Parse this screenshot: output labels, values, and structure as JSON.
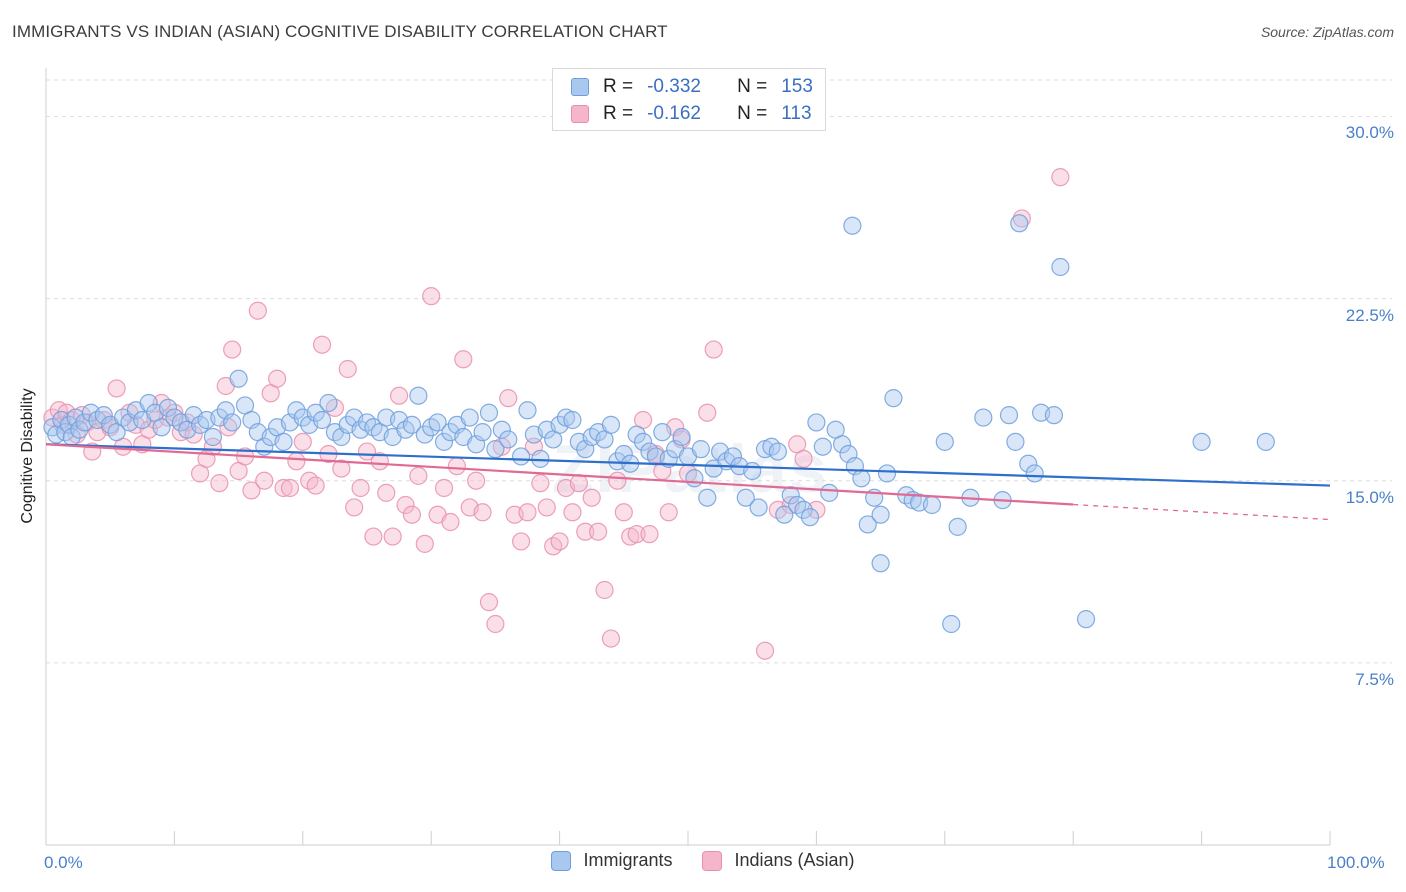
{
  "header": {
    "title": "IMMIGRANTS VS INDIAN (ASIAN) COGNITIVE DISABILITY CORRELATION CHART",
    "source": "Source: ZipAtlas.com"
  },
  "watermark": "ZIPatlas",
  "stats": [
    {
      "r_label": "R =",
      "r_value": "-0.332",
      "n_label": "N =",
      "n_value": "153"
    },
    {
      "r_label": "R =",
      "r_value": "-0.162",
      "n_label": "N =",
      "n_value": "113"
    }
  ],
  "colors": {
    "blue_fill": "#a9c8ef",
    "blue_stroke": "#6e9fdc",
    "blue_line": "#2e6fcb",
    "pink_fill": "#f5b6cb",
    "pink_stroke": "#e98fae",
    "pink_line": "#e06a93",
    "grid": "#dcdcdc",
    "tick_text": "#4a7fc8"
  },
  "chart_data": {
    "type": "scatter",
    "title": "IMMIGRANTS VS INDIAN (ASIAN) COGNITIVE DISABILITY CORRELATION CHART",
    "xlabel": "",
    "ylabel": "Cognitive Disability",
    "xlim": [
      0,
      100
    ],
    "ylim": [
      0,
      31.5
    ],
    "x_tick_labels": [
      "0.0%",
      "100.0%"
    ],
    "y_ticks": [
      7.5,
      15.0,
      22.5,
      30.0
    ],
    "y_tick_labels": [
      "7.5%",
      "15.0%",
      "22.5%",
      "30.0%"
    ],
    "grid": true,
    "legend_position": "bottom",
    "series": [
      {
        "name": "Immigrants",
        "r": -0.332,
        "n": 153,
        "trend": {
          "x": [
            0,
            100
          ],
          "y": [
            16.5,
            14.8
          ],
          "dashed_from": null
        },
        "points": [
          [
            0.5,
            17.2
          ],
          [
            0.8,
            16.9
          ],
          [
            1.2,
            17.5
          ],
          [
            1.5,
            17.0
          ],
          [
            1.8,
            17.3
          ],
          [
            2.0,
            16.8
          ],
          [
            2.3,
            17.6
          ],
          [
            2.6,
            17.1
          ],
          [
            3.0,
            17.4
          ],
          [
            3.5,
            17.8
          ],
          [
            4.0,
            17.5
          ],
          [
            4.5,
            17.7
          ],
          [
            5.0,
            17.3
          ],
          [
            5.5,
            17.0
          ],
          [
            6.0,
            17.6
          ],
          [
            6.5,
            17.4
          ],
          [
            7.0,
            17.9
          ],
          [
            7.5,
            17.5
          ],
          [
            8.0,
            18.2
          ],
          [
            8.5,
            17.8
          ],
          [
            9.0,
            17.2
          ],
          [
            9.5,
            18.0
          ],
          [
            10.0,
            17.6
          ],
          [
            10.5,
            17.4
          ],
          [
            11.0,
            17.1
          ],
          [
            11.5,
            17.7
          ],
          [
            12.0,
            17.3
          ],
          [
            12.5,
            17.5
          ],
          [
            13.0,
            16.8
          ],
          [
            13.5,
            17.6
          ],
          [
            14.0,
            17.9
          ],
          [
            14.5,
            17.4
          ],
          [
            15.0,
            19.2
          ],
          [
            15.5,
            18.1
          ],
          [
            16.0,
            17.5
          ],
          [
            16.5,
            17.0
          ],
          [
            17.0,
            16.4
          ],
          [
            17.5,
            16.8
          ],
          [
            18.0,
            17.2
          ],
          [
            18.5,
            16.6
          ],
          [
            19.0,
            17.4
          ],
          [
            19.5,
            17.9
          ],
          [
            20.0,
            17.6
          ],
          [
            20.5,
            17.3
          ],
          [
            21.0,
            17.8
          ],
          [
            21.5,
            17.5
          ],
          [
            22.0,
            18.2
          ],
          [
            22.5,
            17.0
          ],
          [
            23.0,
            16.8
          ],
          [
            23.5,
            17.3
          ],
          [
            24.0,
            17.6
          ],
          [
            24.5,
            17.1
          ],
          [
            25.0,
            17.4
          ],
          [
            25.5,
            17.2
          ],
          [
            26.0,
            17.0
          ],
          [
            26.5,
            17.6
          ],
          [
            27.0,
            16.8
          ],
          [
            27.5,
            17.5
          ],
          [
            28.0,
            17.1
          ],
          [
            28.5,
            17.3
          ],
          [
            29.0,
            18.5
          ],
          [
            29.5,
            16.9
          ],
          [
            30.0,
            17.2
          ],
          [
            30.5,
            17.4
          ],
          [
            31.0,
            16.6
          ],
          [
            31.5,
            17.0
          ],
          [
            32.0,
            17.3
          ],
          [
            32.5,
            16.8
          ],
          [
            33.0,
            17.6
          ],
          [
            33.5,
            16.5
          ],
          [
            34.0,
            17.0
          ],
          [
            34.5,
            17.8
          ],
          [
            35.0,
            16.3
          ],
          [
            35.5,
            17.1
          ],
          [
            36.0,
            16.7
          ],
          [
            37.0,
            16.0
          ],
          [
            37.5,
            17.9
          ],
          [
            38.0,
            16.9
          ],
          [
            38.5,
            15.9
          ],
          [
            39.0,
            17.1
          ],
          [
            39.5,
            16.7
          ],
          [
            40.0,
            17.3
          ],
          [
            40.5,
            17.6
          ],
          [
            41.0,
            17.5
          ],
          [
            41.5,
            16.6
          ],
          [
            42.0,
            16.3
          ],
          [
            42.5,
            16.8
          ],
          [
            43.0,
            17.0
          ],
          [
            43.5,
            16.7
          ],
          [
            44.0,
            17.3
          ],
          [
            44.5,
            15.8
          ],
          [
            45.0,
            16.1
          ],
          [
            45.5,
            15.7
          ],
          [
            46.0,
            16.9
          ],
          [
            46.5,
            16.6
          ],
          [
            47.0,
            16.2
          ],
          [
            47.5,
            16.0
          ],
          [
            48.0,
            17.0
          ],
          [
            48.5,
            15.9
          ],
          [
            49.0,
            16.3
          ],
          [
            49.5,
            16.8
          ],
          [
            50.0,
            16.0
          ],
          [
            50.5,
            15.1
          ],
          [
            51.0,
            16.3
          ],
          [
            51.5,
            14.3
          ],
          [
            52.0,
            15.5
          ],
          [
            52.5,
            16.2
          ],
          [
            53.0,
            15.8
          ],
          [
            53.5,
            16.0
          ],
          [
            54.0,
            15.6
          ],
          [
            54.5,
            14.3
          ],
          [
            55.0,
            15.4
          ],
          [
            55.5,
            13.9
          ],
          [
            56.0,
            16.3
          ],
          [
            56.5,
            16.4
          ],
          [
            57.0,
            16.2
          ],
          [
            57.5,
            13.6
          ],
          [
            58.0,
            14.4
          ],
          [
            58.5,
            14.0
          ],
          [
            59.0,
            13.8
          ],
          [
            59.5,
            13.5
          ],
          [
            60.0,
            17.4
          ],
          [
            60.5,
            16.4
          ],
          [
            61.0,
            14.5
          ],
          [
            61.5,
            17.1
          ],
          [
            62.0,
            16.5
          ],
          [
            62.5,
            16.1
          ],
          [
            63.0,
            15.6
          ],
          [
            63.5,
            15.1
          ],
          [
            64.0,
            13.2
          ],
          [
            64.5,
            14.3
          ],
          [
            65.0,
            13.6
          ],
          [
            65.5,
            15.3
          ],
          [
            66.0,
            18.4
          ],
          [
            67.0,
            14.4
          ],
          [
            67.5,
            14.2
          ],
          [
            68.0,
            14.1
          ],
          [
            69.0,
            14.0
          ],
          [
            70.0,
            16.6
          ],
          [
            70.5,
            9.1
          ],
          [
            71.0,
            13.1
          ],
          [
            72.0,
            14.3
          ],
          [
            73.0,
            17.6
          ],
          [
            75.0,
            17.7
          ],
          [
            75.5,
            16.6
          ],
          [
            76.5,
            15.7
          ],
          [
            77.0,
            15.3
          ],
          [
            77.5,
            17.8
          ],
          [
            78.5,
            17.7
          ],
          [
            79.0,
            23.8
          ],
          [
            81.0,
            9.3
          ],
          [
            75.8,
            25.6
          ],
          [
            62.8,
            25.5
          ],
          [
            65.0,
            11.6
          ],
          [
            90.0,
            16.6
          ],
          [
            95.0,
            16.6
          ],
          [
            74.5,
            14.2
          ]
        ]
      },
      {
        "name": "Indians (Asian)",
        "r": -0.162,
        "n": 113,
        "trend": {
          "x": [
            0,
            100
          ],
          "y": [
            16.5,
            13.4
          ],
          "dashed_from": 80
        },
        "points": [
          [
            0.5,
            17.6
          ],
          [
            1.0,
            17.9
          ],
          [
            1.3,
            17.3
          ],
          [
            1.6,
            17.8
          ],
          [
            2.0,
            17.5
          ],
          [
            2.4,
            16.9
          ],
          [
            2.8,
            17.7
          ],
          [
            3.2,
            17.4
          ],
          [
            3.6,
            16.2
          ],
          [
            4.0,
            17.0
          ],
          [
            4.5,
            17.5
          ],
          [
            5.0,
            17.2
          ],
          [
            5.5,
            18.8
          ],
          [
            6.0,
            16.4
          ],
          [
            6.5,
            17.8
          ],
          [
            7.0,
            17.3
          ],
          [
            7.5,
            16.5
          ],
          [
            8.0,
            17.1
          ],
          [
            8.5,
            17.5
          ],
          [
            9.0,
            18.2
          ],
          [
            9.5,
            17.6
          ],
          [
            10.0,
            17.8
          ],
          [
            10.5,
            17.0
          ],
          [
            11.0,
            17.4
          ],
          [
            11.5,
            16.9
          ],
          [
            12.0,
            15.3
          ],
          [
            12.5,
            15.9
          ],
          [
            13.0,
            16.4
          ],
          [
            13.5,
            14.9
          ],
          [
            14.0,
            18.9
          ],
          [
            14.5,
            20.4
          ],
          [
            15.0,
            15.4
          ],
          [
            15.5,
            16.0
          ],
          [
            16.0,
            14.6
          ],
          [
            16.5,
            22.0
          ],
          [
            17.0,
            15.0
          ],
          [
            17.5,
            18.6
          ],
          [
            18.0,
            19.2
          ],
          [
            18.5,
            14.7
          ],
          [
            19.0,
            14.7
          ],
          [
            19.5,
            15.8
          ],
          [
            20.0,
            16.6
          ],
          [
            20.5,
            15.0
          ],
          [
            21.0,
            14.8
          ],
          [
            21.5,
            20.6
          ],
          [
            22.0,
            16.1
          ],
          [
            22.5,
            18.0
          ],
          [
            23.0,
            15.5
          ],
          [
            23.5,
            19.6
          ],
          [
            24.0,
            13.9
          ],
          [
            24.5,
            14.7
          ],
          [
            25.0,
            16.2
          ],
          [
            25.5,
            12.7
          ],
          [
            26.0,
            15.8
          ],
          [
            26.5,
            14.5
          ],
          [
            27.0,
            12.7
          ],
          [
            27.5,
            18.5
          ],
          [
            28.0,
            14.0
          ],
          [
            28.5,
            13.6
          ],
          [
            29.0,
            15.2
          ],
          [
            29.5,
            12.4
          ],
          [
            30.0,
            22.6
          ],
          [
            30.5,
            13.6
          ],
          [
            31.0,
            14.7
          ],
          [
            31.5,
            13.3
          ],
          [
            32.0,
            15.6
          ],
          [
            32.5,
            20.0
          ],
          [
            33.0,
            13.9
          ],
          [
            33.5,
            15.0
          ],
          [
            34.0,
            13.7
          ],
          [
            34.5,
            10.0
          ],
          [
            35.0,
            9.1
          ],
          [
            35.5,
            16.4
          ],
          [
            36.0,
            18.4
          ],
          [
            36.5,
            13.6
          ],
          [
            37.0,
            12.5
          ],
          [
            37.5,
            13.7
          ],
          [
            38.0,
            16.4
          ],
          [
            38.5,
            14.9
          ],
          [
            39.0,
            13.9
          ],
          [
            39.5,
            12.3
          ],
          [
            40.0,
            12.5
          ],
          [
            40.5,
            14.7
          ],
          [
            41.0,
            13.7
          ],
          [
            41.5,
            14.9
          ],
          [
            42.0,
            12.9
          ],
          [
            42.5,
            14.3
          ],
          [
            43.0,
            12.9
          ],
          [
            43.5,
            10.5
          ],
          [
            44.0,
            8.5
          ],
          [
            44.5,
            15.0
          ],
          [
            45.0,
            13.7
          ],
          [
            45.5,
            12.7
          ],
          [
            46.0,
            12.8
          ],
          [
            46.5,
            17.5
          ],
          [
            47.0,
            12.8
          ],
          [
            47.5,
            16.1
          ],
          [
            48.0,
            15.4
          ],
          [
            48.5,
            13.7
          ],
          [
            49.0,
            17.2
          ],
          [
            49.5,
            16.7
          ],
          [
            50.0,
            15.3
          ],
          [
            51.5,
            17.8
          ],
          [
            52.0,
            20.4
          ],
          [
            56.0,
            8.0
          ],
          [
            57.0,
            13.8
          ],
          [
            58.0,
            14.0
          ],
          [
            58.5,
            16.5
          ],
          [
            59.0,
            15.9
          ],
          [
            60.0,
            13.8
          ],
          [
            76.0,
            25.8
          ],
          [
            79.0,
            27.5
          ],
          [
            14.2,
            17.2
          ]
        ]
      }
    ]
  },
  "legend": [
    {
      "label": "Immigrants"
    },
    {
      "label": "Indians (Asian)"
    }
  ]
}
